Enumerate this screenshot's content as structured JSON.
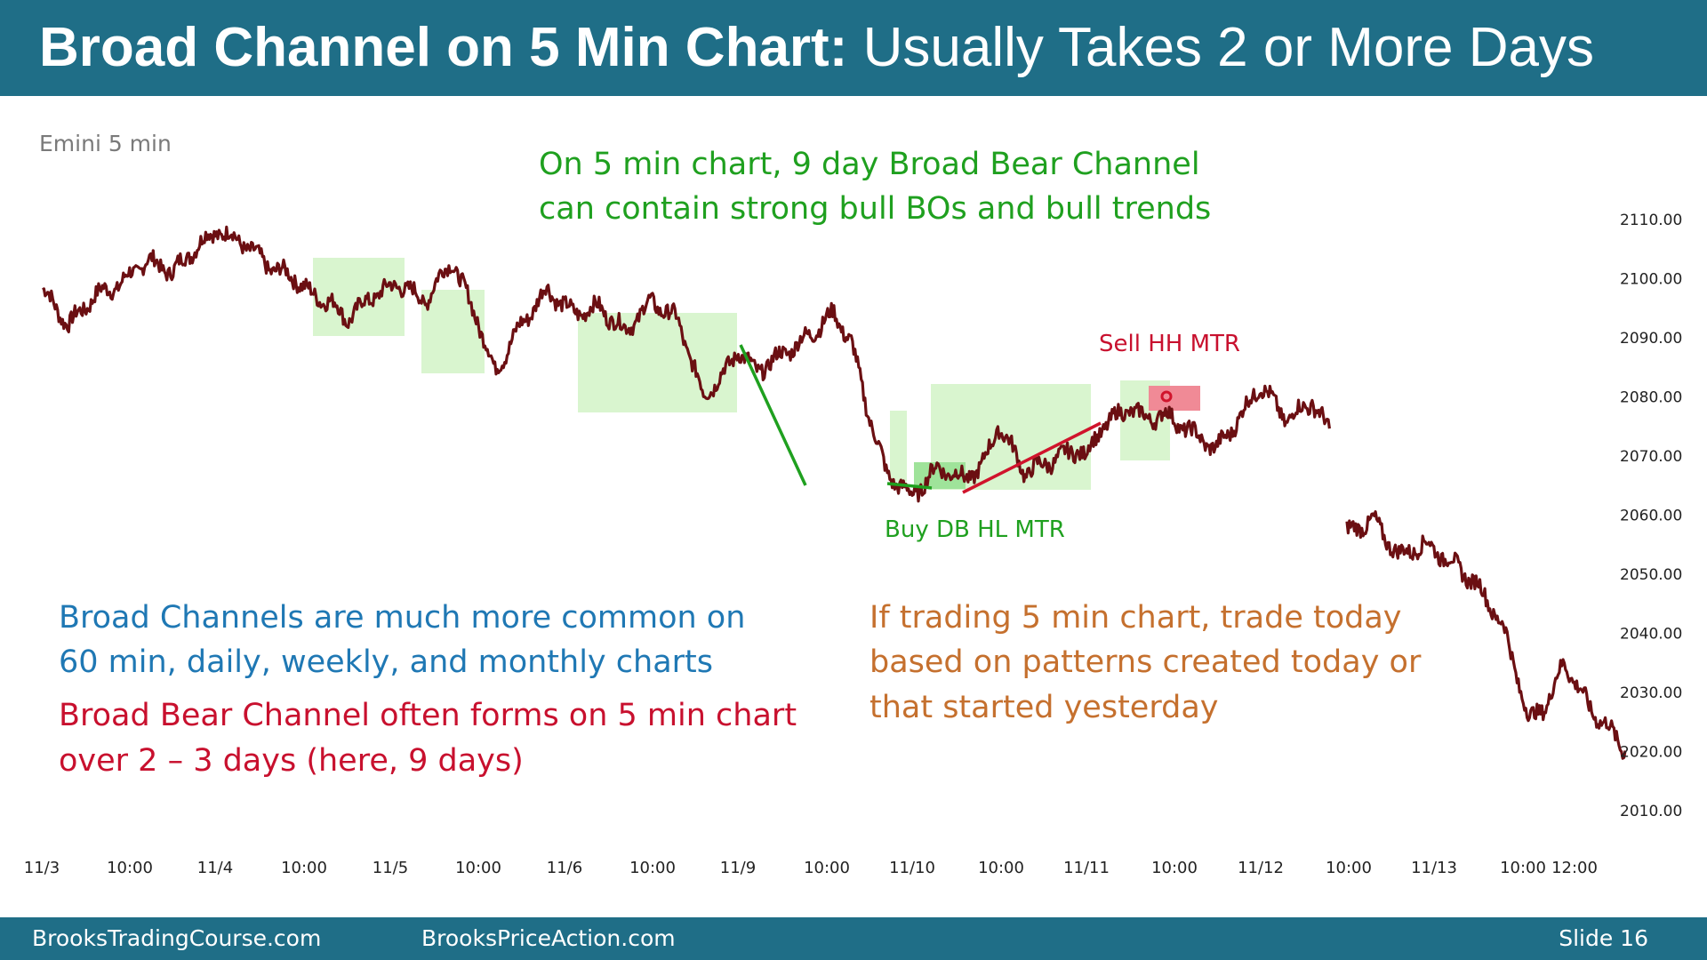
{
  "header": {
    "title_bold": "Broad Channel on 5 Min Chart:",
    "title_rest": "Usually Takes 2 or More Days"
  },
  "footer": {
    "left": "BrooksTradingCourse.com",
    "center": "BrooksPriceAction.com",
    "right": "Slide  16"
  },
  "colors": {
    "header_bg": "#1f6e87",
    "price": "#6b0f12",
    "green_box": "#d9f5cf",
    "green_line": "#1fa01f",
    "red_line": "#d0142c",
    "blue_text": "#1f78b4",
    "orange_text": "#c5702e",
    "red_text": "#c8102e",
    "green_text": "#1fa01f"
  },
  "annotations": {
    "instrument": "Emini 5 min",
    "green_note_1": "On 5 min chart, 9 day Broad Bear Channel",
    "green_note_2": "can contain strong bull BOs and bull trends",
    "sell_label": "Sell HH MTR",
    "buy_label": "Buy DB HL MTR",
    "blue_note_1": "Broad Channels are much more common on",
    "blue_note_2": "60 min, daily, weekly, and monthly charts",
    "red_note_1": "Broad Bear Channel often forms on 5 min chart",
    "red_note_2": "over 2 – 3 days (here, 9 days)",
    "orange_note_1": "If trading 5 min chart, trade today",
    "orange_note_2": "based on patterns created today or",
    "orange_note_3": "that started yesterday"
  },
  "chart_data": {
    "type": "line",
    "title": "Emini 5 min",
    "ylim": [
      2005,
      2115
    ],
    "y_ticks": [
      "2110.00",
      "2100.00",
      "2090.00",
      "2080.00",
      "2070.00",
      "2060.00",
      "2050.00",
      "2040.00",
      "2030.00",
      "2020.00",
      "2010.00"
    ],
    "x_ticks": [
      "11/3",
      "10:00",
      "11/4",
      "10:00",
      "11/5",
      "10:00",
      "11/6",
      "10:00",
      "11/9",
      "10:00",
      "11/10",
      "10:00",
      "11/11",
      "10:00",
      "11/12",
      "10:00",
      "11/13",
      "10:00",
      "12:00"
    ],
    "series": [
      {
        "x": [
          0.0,
          0.3,
          0.6,
          0.9,
          1.2,
          1.5,
          1.75,
          2.0,
          2.3,
          2.6,
          2.9,
          3.1,
          3.3,
          3.5,
          3.8,
          4.1,
          4.4,
          4.7,
          5.0,
          5.2,
          5.5,
          5.8,
          6.1,
          6.4,
          6.7,
          7.0,
          7.3,
          7.6,
          7.9,
          8.0,
          8.2,
          8.5,
          8.8,
          9.1,
          9.3,
          9.5,
          9.7,
          10.0,
          10.3,
          10.6,
          10.8,
          11.0,
          11.3,
          11.6,
          11.9,
          12.0,
          12.2,
          12.5,
          12.7,
          12.9,
          13.2,
          13.5,
          13.8,
          14.0,
          14.3,
          14.6,
          14.8,
          15.0,
          15.3,
          15.6,
          15.9,
          16.2,
          16.5,
          16.8,
          17.1,
          17.3,
          17.5,
          17.8,
          18.0,
          18.2
        ],
        "y": [
          2098,
          2092,
          2097,
          2099,
          2103,
          2101,
          2105,
          2108,
          2106,
          2102,
          2100,
          2097,
          2096,
          2093,
          2097,
          2099,
          2096,
          2103,
          2093,
          2084,
          2092,
          2098,
          2094,
          2095,
          2091,
          2096,
          2093,
          2080,
          2085,
          2088,
          2084,
          2087,
          2090,
          2094,
          2089,
          2077,
          2067,
          2063,
          2068,
          2066,
          2068,
          2075,
          2067,
          2069,
          2071,
          2070,
          2075,
          2078,
          2076,
          2077,
          2074,
          2071,
          2077,
          2082,
          2076,
          2079,
          2074,
          2057,
          2059,
          2053,
          2055,
          2052,
          2048,
          2041,
          2025,
          2028,
          2035,
          2027,
          2024,
          2020
        ],
        "color": "#6b0f12"
      }
    ],
    "grid": false
  }
}
